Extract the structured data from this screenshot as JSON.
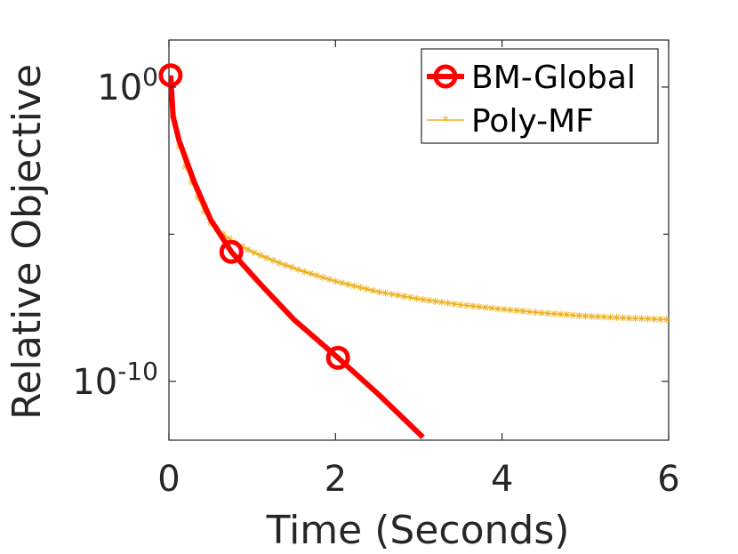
{
  "chart_data": {
    "type": "line",
    "xlabel": "Time (Seconds)",
    "ylabel": "Relative Objective",
    "xlim": [
      0,
      6
    ],
    "ylog": true,
    "ylim_exp": [
      -12,
      1.6
    ],
    "xticks": [
      {
        "value": 0,
        "label": "0"
      },
      {
        "value": 2,
        "label": "2"
      },
      {
        "value": 4,
        "label": "4"
      },
      {
        "value": 6,
        "label": "6"
      }
    ],
    "yticks": [
      {
        "exp": 0,
        "base": "10",
        "sup": "0"
      },
      {
        "exp": -10,
        "base": "10",
        "sup": "-10"
      }
    ],
    "yminor_exp": [
      -5
    ],
    "grid": false,
    "legend_position": "top-right",
    "series": [
      {
        "name": "BM-Global",
        "color": "#ff0000",
        "marker": "circle",
        "x": [
          0.02,
          0.05,
          0.12,
          0.3,
          0.5,
          0.75,
          1.1,
          1.5,
          2.03,
          2.5,
          3.05
        ],
        "y_exp": [
          0.4,
          -1.0,
          -1.8,
          -3.2,
          -4.5,
          -5.6,
          -6.7,
          -7.9,
          -9.2,
          -10.4,
          -11.9
        ],
        "marker_indices": [
          0,
          5,
          8
        ]
      },
      {
        "name": "Poly-MF",
        "color": "#edb120",
        "marker": "asterisk",
        "x": [
          0.05,
          0.1,
          0.2,
          0.3,
          0.4,
          0.5,
          0.6,
          0.8,
          1.0,
          1.3,
          1.6,
          2.0,
          2.5,
          3.0,
          3.5,
          4.0,
          4.5,
          5.0,
          5.5,
          6.0
        ],
        "y_exp": [
          -1.0,
          -1.8,
          -2.7,
          -3.4,
          -4.1,
          -4.6,
          -4.9,
          -5.3,
          -5.6,
          -5.95,
          -6.25,
          -6.6,
          -6.95,
          -7.2,
          -7.4,
          -7.55,
          -7.68,
          -7.78,
          -7.85,
          -7.9
        ],
        "marker_every": 0.075
      }
    ]
  }
}
